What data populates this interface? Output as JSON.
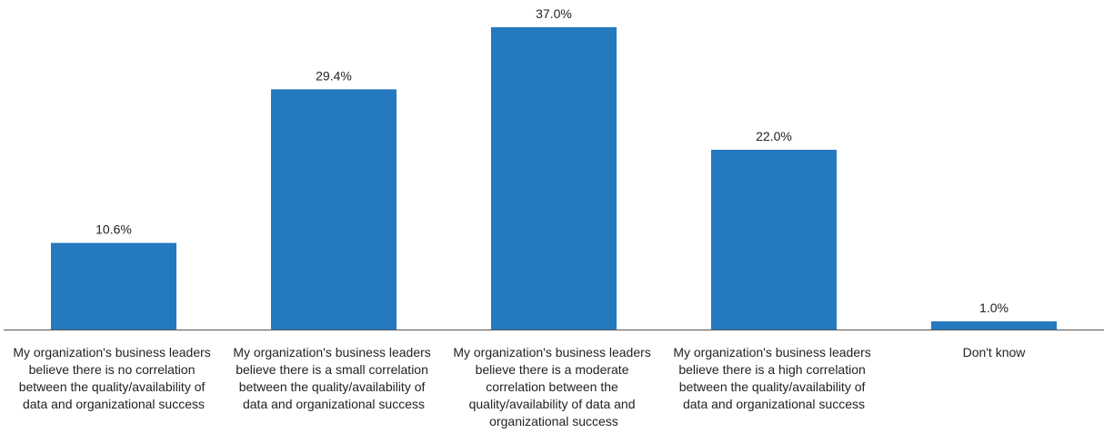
{
  "chart_data": {
    "type": "bar",
    "categories": [
      "My organization's business leaders believe there is no correlation between the quality/availability of data and organizational success",
      "My organization's business leaders believe there is a small correlation between the quality/availability of data and organizational success",
      "My organization's business leaders believe there is a moderate correlation between the quality/availability of data and organizational success",
      "My organization's business leaders believe there is a high correlation between the quality/availability of data and organizational success",
      "Don't know"
    ],
    "values": [
      10.6,
      29.4,
      37.0,
      22.0,
      1.0
    ],
    "value_labels": [
      "10.6%",
      "29.4%",
      "37.0%",
      "22.0%",
      "1.0%"
    ],
    "color": "#2479bf"
  }
}
